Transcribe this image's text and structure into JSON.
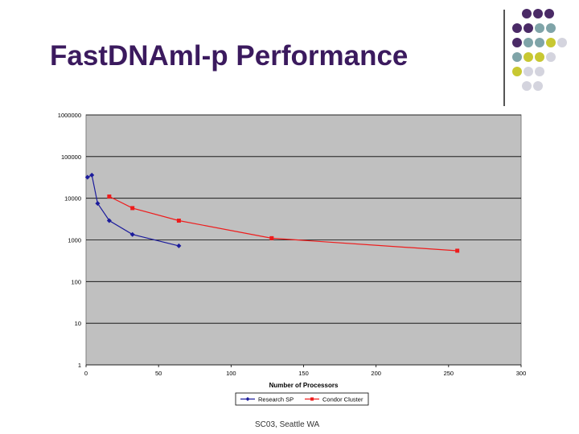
{
  "slide": {
    "title": "FastDNAml-p Performance",
    "footer": "SC03, Seattle WA"
  },
  "colors": {
    "title": "#3b1a5e",
    "dot_palette": [
      "#4a2a66",
      "#7fa4a8",
      "#c8c832",
      "#d4d4de"
    ]
  },
  "chart_data": {
    "type": "line",
    "y_scale": "log",
    "xlabel": "Number of Processors",
    "ylabel": "",
    "xlim": [
      0,
      300
    ],
    "ylim": [
      1,
      1000000
    ],
    "x_ticks": [
      "0",
      "50",
      "100",
      "150",
      "200",
      "250",
      "300"
    ],
    "y_ticks": [
      "1",
      "10",
      "100",
      "1000",
      "10000",
      "100000",
      "1000000"
    ],
    "legend_position": "bottom",
    "series": [
      {
        "name": "Research SP",
        "color": "#1c1c9c",
        "marker": "diamond",
        "x": [
          1,
          4,
          8,
          16,
          32,
          64
        ],
        "y": [
          32000,
          36000,
          7500,
          2900,
          1350,
          720
        ]
      },
      {
        "name": "Condor Cluster",
        "color": "#ee1c1c",
        "marker": "square",
        "x": [
          16,
          32,
          64,
          128,
          256
        ],
        "y": [
          11000,
          5800,
          2900,
          1100,
          550
        ]
      }
    ]
  }
}
